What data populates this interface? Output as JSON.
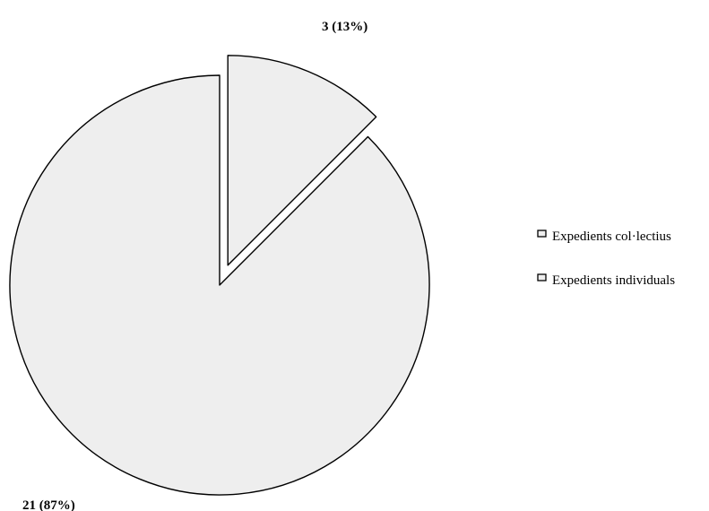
{
  "chart_data": {
    "type": "pie",
    "title": "",
    "slices": [
      {
        "label": "Expedients col·lectius",
        "value": 3,
        "percent": 13,
        "data_label": "3 (13%)",
        "exploded": true
      },
      {
        "label": "Expedients individuals",
        "value": 21,
        "percent": 87,
        "data_label": "21 (87%)",
        "exploded": false
      }
    ],
    "legend": {
      "position": "right",
      "entries": [
        "Expedients col·lectius",
        "Expedients individuals"
      ]
    },
    "fill_color": "#eeeeee",
    "stroke_color": "#000000",
    "start_angle": "12 o'clock",
    "direction": "clockwise"
  }
}
